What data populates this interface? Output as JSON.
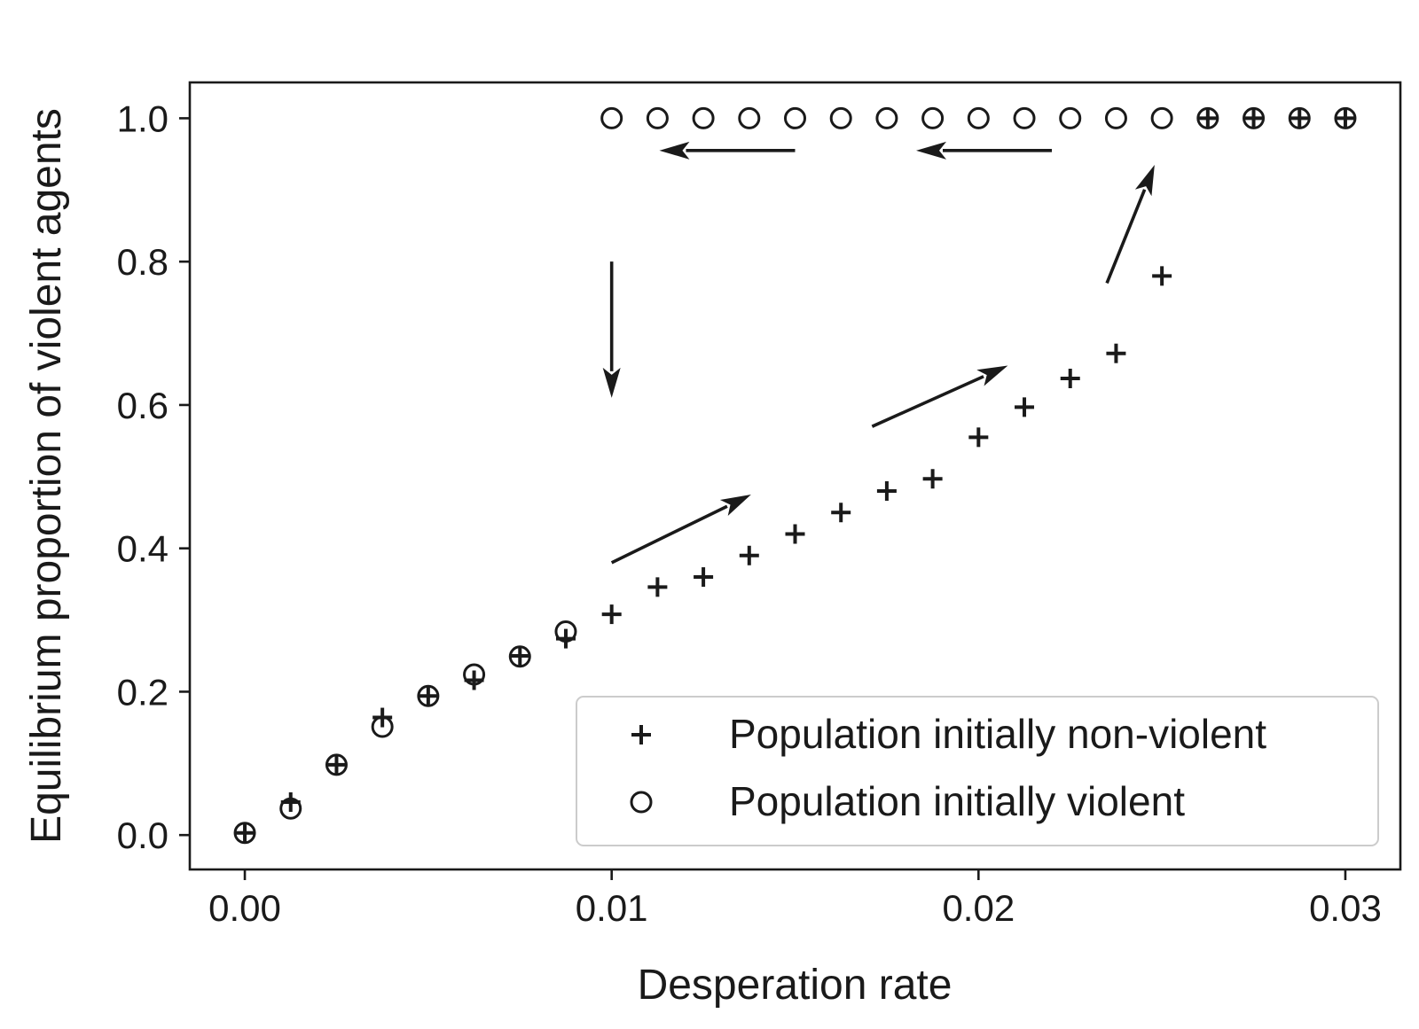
{
  "chart_data": {
    "type": "scatter",
    "title": "",
    "xlabel": "Desperation rate",
    "ylabel": "Equilibrium proportion of violent agents",
    "xlim": [
      -0.0015,
      0.0315
    ],
    "ylim": [
      -0.048,
      1.05
    ],
    "xticks": [
      0.0,
      0.01,
      0.02,
      0.03
    ],
    "xtick_labels": [
      "0.00",
      "0.01",
      "0.02",
      "0.03"
    ],
    "yticks": [
      0.0,
      0.2,
      0.4,
      0.6,
      0.8,
      1.0
    ],
    "ytick_labels": [
      "0.0",
      "0.2",
      "0.4",
      "0.6",
      "0.8",
      "1.0"
    ],
    "grid": false,
    "legend_position": "bottom-right",
    "series": [
      {
        "name": "Population initially non-violent",
        "marker": "plus",
        "color": "#1a1a1a",
        "x": [
          0.0,
          0.00125,
          0.0025,
          0.00375,
          0.005,
          0.00625,
          0.0075,
          0.00875,
          0.01,
          0.01125,
          0.0125,
          0.01375,
          0.015,
          0.01625,
          0.0175,
          0.01875,
          0.02,
          0.02125,
          0.0225,
          0.02375,
          0.025,
          0.02625,
          0.0275,
          0.02875,
          0.03
        ],
        "y": [
          0.003,
          0.046,
          0.098,
          0.164,
          0.194,
          0.216,
          0.25,
          0.274,
          0.308,
          0.346,
          0.36,
          0.39,
          0.42,
          0.45,
          0.48,
          0.497,
          0.555,
          0.597,
          0.637,
          0.672,
          0.78,
          1.0,
          1.0,
          1.0,
          1.0
        ]
      },
      {
        "name": "Population initially violent",
        "marker": "circle",
        "color": "#1a1a1a",
        "x": [
          0.0,
          0.00125,
          0.0025,
          0.00375,
          0.005,
          0.00625,
          0.0075,
          0.00875,
          0.01,
          0.01125,
          0.0125,
          0.01375,
          0.015,
          0.01625,
          0.0175,
          0.01875,
          0.02,
          0.02125,
          0.0225,
          0.02375,
          0.025,
          0.02625,
          0.0275,
          0.02875,
          0.03
        ],
        "y": [
          0.003,
          0.037,
          0.098,
          0.151,
          0.194,
          0.224,
          0.249,
          0.284,
          1.0,
          1.0,
          1.0,
          1.0,
          1.0,
          1.0,
          1.0,
          1.0,
          1.0,
          1.0,
          1.0,
          1.0,
          1.0,
          1.0,
          1.0,
          1.0,
          1.0
        ]
      }
    ],
    "arrows": [
      {
        "from": [
          0.01,
          0.38
        ],
        "to": [
          0.0138,
          0.475
        ]
      },
      {
        "from": [
          0.0171,
          0.57
        ],
        "to": [
          0.0208,
          0.655
        ]
      },
      {
        "from": [
          0.0235,
          0.77
        ],
        "to": [
          0.0248,
          0.935
        ]
      },
      {
        "from": [
          0.015,
          0.955
        ],
        "to": [
          0.0113,
          0.955
        ]
      },
      {
        "from": [
          0.022,
          0.955
        ],
        "to": [
          0.0183,
          0.955
        ]
      },
      {
        "from": [
          0.01,
          0.8
        ],
        "to": [
          0.01,
          0.61
        ]
      }
    ]
  }
}
